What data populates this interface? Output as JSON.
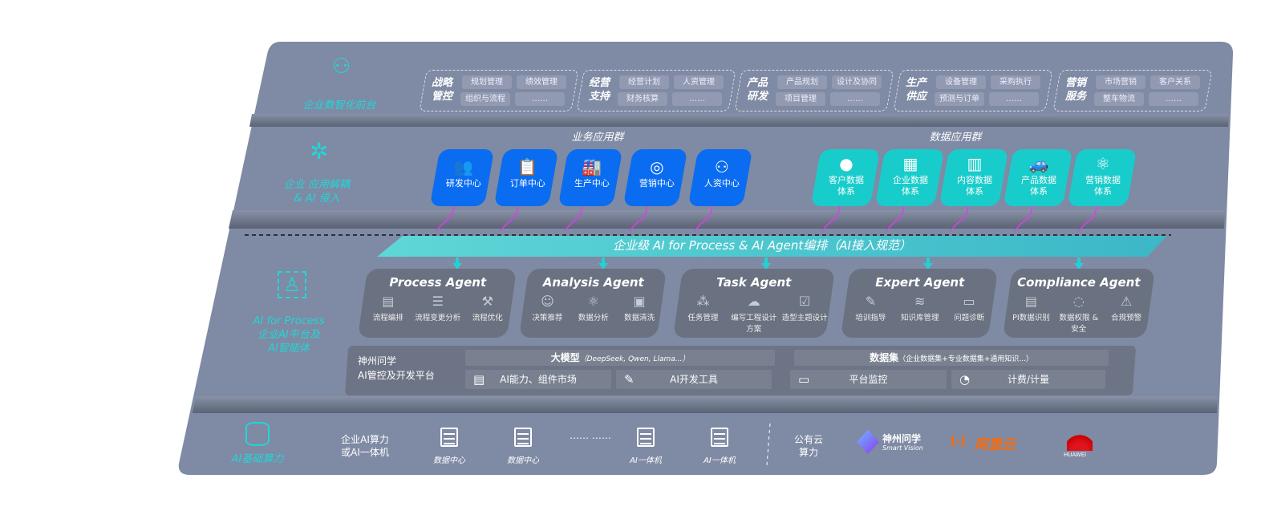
{
  "layers": {
    "front": {
      "label": "企业数智化前台",
      "icon": "brain-icon",
      "groups": [
        {
          "title": [
            "战略",
            "管控"
          ],
          "items": [
            "规划管理",
            "绩效管理",
            "组织与流程",
            "……"
          ]
        },
        {
          "title": [
            "经营",
            "支持"
          ],
          "items": [
            "经营计划",
            "人资管理",
            "财务核算",
            "……"
          ]
        },
        {
          "title": [
            "产品",
            "研发"
          ],
          "items": [
            "产品规划",
            "设计及协同",
            "项目管理",
            "……"
          ]
        },
        {
          "title": [
            "生产",
            "供应"
          ],
          "items": [
            "设备管理",
            "采购执行",
            "预测与订单",
            "……"
          ]
        },
        {
          "title": [
            "营销",
            "服务"
          ],
          "items": [
            "市场营销",
            "客户关系",
            "整车物流",
            "……"
          ]
        }
      ]
    },
    "apps": {
      "label": [
        "企业 应用解耦",
        "& AI 侵入"
      ],
      "icon": "molecule-icon",
      "business_title": "业务应用群",
      "business": [
        {
          "label": "研发中心",
          "icon": "users-icon"
        },
        {
          "label": "订单中心",
          "icon": "clipboard-icon"
        },
        {
          "label": "生产中心",
          "icon": "factory-icon"
        },
        {
          "label": "营销中心",
          "icon": "target-icon"
        },
        {
          "label": "人资中心",
          "icon": "person-icon"
        }
      ],
      "data_title": "数据应用群",
      "data": [
        {
          "label": [
            "客户数据",
            "体系"
          ],
          "icon": "user-icon"
        },
        {
          "label": [
            "企业数据",
            "体系"
          ],
          "icon": "building-icon"
        },
        {
          "label": [
            "内容数据",
            "体系"
          ],
          "icon": "books-icon"
        },
        {
          "label": [
            "产品数据",
            "体系"
          ],
          "icon": "car-icon"
        },
        {
          "label": [
            "营销数据",
            "体系"
          ],
          "icon": "atom-icon"
        }
      ],
      "colors": {
        "business": "#0a6cf0",
        "data": "#18cccb",
        "arrow": "#e03de8"
      }
    },
    "ai": {
      "label": [
        "AI for Process",
        "企业AI平台及",
        "AI智能体"
      ],
      "icon": "face-scan-icon",
      "banner": "企业级 AI for Process & AI Agent编排（AI接入规范）",
      "agents": [
        {
          "title": "Process Agent",
          "items": [
            [
              "流程编排",
              "chart-icon"
            ],
            [
              "流程变更分析",
              "list-icon"
            ],
            [
              "流程优化",
              "tools-icon"
            ]
          ]
        },
        {
          "title": "Analysis Agent",
          "items": [
            [
              "决策推荐",
              "head-icon"
            ],
            [
              "数据分析",
              "atom-icon"
            ],
            [
              "数据清洗",
              "doc-icon"
            ]
          ]
        },
        {
          "title": "Task Agent",
          "items": [
            [
              "任务管理",
              "network-icon"
            ],
            [
              "编写工程设计方案",
              "cloud-icon"
            ],
            [
              "造型主题设计",
              "checklist-icon"
            ]
          ]
        },
        {
          "title": "Expert Agent",
          "items": [
            [
              "培训指导",
              "wand-icon"
            ],
            [
              "知识库管理",
              "layers-icon"
            ],
            [
              "问题诊断",
              "monitor-icon"
            ]
          ]
        },
        {
          "title": "Compliance Agent",
          "items": [
            [
              "PI数据识别",
              "id-card-icon"
            ],
            [
              "数据权限 & 安全",
              "shield-icon"
            ],
            [
              "合规预警",
              "alert-icon"
            ]
          ]
        }
      ],
      "platform": {
        "label": [
          "神州问学",
          "AI管控及开发平台"
        ],
        "model_title": "大模型",
        "model_note": "（DeepSeek, Qwen, Llama...）",
        "dataset_title": "数据集",
        "dataset_note": "（企业数据集+专业数据集+通用知识...）",
        "tools": [
          {
            "label": "AI能力、组件市场",
            "icon": "market-icon"
          },
          {
            "label": "AI开发工具",
            "icon": "dev-tool-icon"
          },
          {
            "label": "平台监控",
            "icon": "monitor-icon"
          },
          {
            "label": "计费/计量",
            "icon": "gauge-icon"
          }
        ]
      }
    },
    "infra": {
      "label": "AI基础算力",
      "icon": "database-icon",
      "private_label": [
        "企业AI算力",
        "或AI一体机"
      ],
      "servers": [
        "数据中心",
        "数据中心",
        "AI一体机",
        "AI一体机"
      ],
      "ellipsis": "…… ……",
      "public_label": [
        "公有云",
        "算力"
      ],
      "vendors": [
        {
          "name": "神州问学",
          "sub": "Smart Vision"
        },
        {
          "name": "阿里云",
          "color": "#ff6a00"
        },
        {
          "name": "HUAWEI",
          "color": "#e0141e"
        }
      ]
    }
  }
}
